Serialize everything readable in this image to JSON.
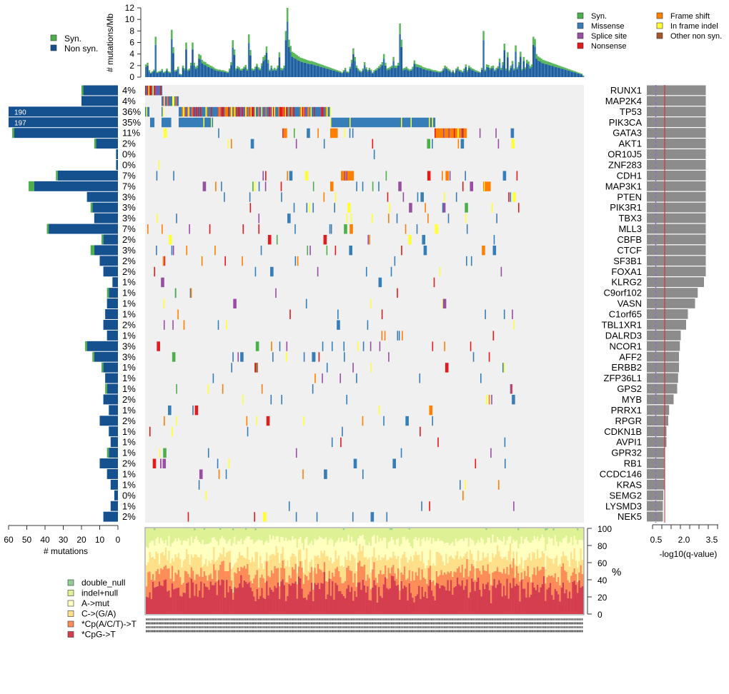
{
  "chart_data": {
    "type": "heatmap",
    "title": "",
    "top_panel": {
      "ylabel": "# mutations/Mb",
      "yticks": [
        0,
        2,
        4,
        6,
        8,
        10,
        12
      ],
      "ylim": [
        0,
        12
      ],
      "legend": [
        {
          "label": "Syn.",
          "color": "#4daf4a"
        },
        {
          "label": "Non syn.",
          "color": "#15508f"
        }
      ],
      "peaks_note": "Per-sample stacked bars, samples sorted by matrix order; typical ~1-2/Mb with spikes up to ~12/Mb",
      "sample_profile": [
        2.2,
        2.5,
        1.2,
        0.8,
        1.0,
        1.3,
        7.0,
        0.9,
        1.0,
        1.1,
        1.4,
        0.9,
        1.0,
        1.5,
        1.0,
        0.9,
        8.2,
        5.2,
        1.2,
        1.3,
        1.8,
        0.6,
        0.5,
        2.0,
        1.5,
        6.0,
        1.3,
        1.5,
        2.5,
        6.0,
        2.5,
        1.8,
        2.0,
        4.0,
        3.8,
        3.0,
        2.7,
        2.6,
        2.3,
        2.2,
        2.0,
        1.9,
        1.7,
        1.5,
        1.4,
        1.3,
        1.3,
        1.2,
        1.2,
        1.1,
        1.0,
        0.9,
        1.5,
        2.6,
        6.4,
        4.8,
        1.5,
        1.9,
        1.7,
        1.4,
        1.5,
        1.8,
        2.1,
        1.4,
        7.4,
        4.7,
        1.5,
        1.4,
        1.8,
        2.3,
        1.7,
        1.5,
        2.4,
        3.5,
        3.8,
        5.3,
        3.0,
        1.3,
        2.0,
        1.4,
        1.6,
        1.4,
        2.0,
        4.3,
        1.6,
        1.5,
        2.0,
        8.0,
        12.0,
        6.5,
        5.4,
        4.4,
        4.2,
        4.0,
        3.8,
        3.6,
        3.4,
        3.3,
        3.2,
        3.1,
        3.0,
        2.9,
        2.8,
        2.8,
        2.7,
        2.6,
        2.5,
        2.4,
        2.3,
        2.2,
        2.1,
        2.0,
        1.9,
        1.8,
        1.7,
        1.6,
        1.5,
        1.4,
        1.3,
        1.2,
        1.1,
        1.0,
        0.8,
        1.2,
        1.6,
        1.0,
        0.9,
        1.8,
        3.0,
        5.0,
        3.5,
        2.0,
        1.5,
        1.2,
        1.0,
        1.5,
        2.6,
        1.7,
        1.2,
        1.6,
        1.3,
        0.8,
        1.2,
        1.4,
        1.6,
        1.9,
        2.2,
        2.6,
        4.0,
        2.5,
        1.5,
        1.6,
        1.8,
        2.0,
        3.5,
        2.0,
        2.0,
        2.5,
        9.3,
        6.5,
        1.5,
        1.6,
        1.8,
        1.5,
        1.3,
        1.4,
        1.8,
        2.9,
        2.3,
        2.2,
        2.1,
        2.0,
        1.8,
        1.7,
        1.6,
        1.5,
        1.5,
        1.4,
        1.3,
        1.2,
        1.2,
        1.1,
        1.0,
        1.0,
        1.1,
        1.5,
        2.0,
        1.8,
        1.5,
        1.3,
        0.9,
        1.2,
        0.8,
        1.5,
        1.8,
        1.3,
        1.2,
        1.0,
        1.5,
        2.2,
        1.2,
        2.0,
        1.7,
        1.5,
        1.4,
        1.2,
        1.1,
        1.0,
        0.9,
        1.6,
        8.0,
        1.3,
        2.2,
        2.1,
        1.6,
        1.9,
        2.0,
        1.3,
        1.6,
        1.9,
        3.2,
        1.6,
        2.6,
        5.8,
        1.5,
        4.3,
        1.2,
        2.0,
        2.8,
        1.5,
        5.5,
        1.7,
        2.6,
        4.4,
        1.4,
        3.5,
        1.7,
        3.0,
        2.7,
        1.9,
        2.2,
        7.0,
        6.6,
        4.0,
        3.6,
        3.4,
        3.2,
        3.0,
        2.9,
        2.8,
        2.7,
        2.6,
        2.5,
        2.4,
        2.3,
        2.2,
        2.1,
        2.0,
        1.9,
        1.8,
        1.7,
        1.6,
        1.5,
        1.4,
        1.3,
        1.2,
        1.1,
        1.0,
        0.9,
        0.8,
        0.7,
        0.6,
        0.3
      ]
    },
    "oncoprint": {
      "legend": [
        {
          "label": "Syn.",
          "color": "#4daf4a"
        },
        {
          "label": "Missense",
          "color": "#377eb8"
        },
        {
          "label": "Splice site",
          "color": "#984ea3"
        },
        {
          "label": "Nonsense",
          "color": "#e41a1c"
        },
        {
          "label": "Frame shift",
          "color": "#ff7f00"
        },
        {
          "label": "In frame indel",
          "color": "#ffff33"
        },
        {
          "label": "Other non syn.",
          "color": "#a65628"
        }
      ],
      "background_color": "#f0f0f0",
      "genes": [
        {
          "name": "RUNX1",
          "pct": "4%",
          "nonsyn": 19,
          "syn": 1,
          "qval": 3.3
        },
        {
          "name": "MAP2K4",
          "pct": "4%",
          "nonsyn": 20,
          "syn": 0,
          "qval": 3.3
        },
        {
          "name": "TP53",
          "pct": "36%",
          "nonsyn": 190,
          "syn": 0,
          "qval": 3.3,
          "count_label": "190"
        },
        {
          "name": "PIK3CA",
          "pct": "35%",
          "nonsyn": 197,
          "syn": 0,
          "qval": 3.3,
          "count_label": "197"
        },
        {
          "name": "GATA3",
          "pct": "11%",
          "nonsyn": 57,
          "syn": 1,
          "qval": 3.3
        },
        {
          "name": "AKT1",
          "pct": "2%",
          "nonsyn": 12,
          "syn": 1,
          "qval": 3.3
        },
        {
          "name": "OR10J5",
          "pct": "0%",
          "nonsyn": 1,
          "syn": 0,
          "qval": 3.3
        },
        {
          "name": "ZNF283",
          "pct": "0%",
          "nonsyn": 1,
          "syn": 0,
          "qval": 3.3
        },
        {
          "name": "CDH1",
          "pct": "7%",
          "nonsyn": 33,
          "syn": 1,
          "qval": 3.3
        },
        {
          "name": "MAP3K1",
          "pct": "7%",
          "nonsyn": 46,
          "syn": 3,
          "qval": 3.3
        },
        {
          "name": "PTEN",
          "pct": "3%",
          "nonsyn": 17,
          "syn": 0,
          "qval": 3.3
        },
        {
          "name": "PIK3R1",
          "pct": "3%",
          "nonsyn": 14,
          "syn": 1,
          "qval": 3.3
        },
        {
          "name": "TBX3",
          "pct": "3%",
          "nonsyn": 13,
          "syn": 0,
          "qval": 3.3
        },
        {
          "name": "MLL3",
          "pct": "7%",
          "nonsyn": 38,
          "syn": 1,
          "qval": 3.3
        },
        {
          "name": "CBFB",
          "pct": "2%",
          "nonsyn": 8,
          "syn": 1,
          "qval": 3.3
        },
        {
          "name": "CTCF",
          "pct": "3%",
          "nonsyn": 13,
          "syn": 2,
          "qval": 3.3
        },
        {
          "name": "SF3B1",
          "pct": "2%",
          "nonsyn": 10,
          "syn": 0,
          "qval": 3.3
        },
        {
          "name": "FOXA1",
          "pct": "2%",
          "nonsyn": 8,
          "syn": 0,
          "qval": 3.3
        },
        {
          "name": "KLRG2",
          "pct": "1%",
          "nonsyn": 3,
          "syn": 0,
          "qval": 3.2
        },
        {
          "name": "C9orf102",
          "pct": "1%",
          "nonsyn": 5,
          "syn": 1,
          "qval": 2.85
        },
        {
          "name": "VASN",
          "pct": "1%",
          "nonsyn": 6,
          "syn": 0,
          "qval": 2.7
        },
        {
          "name": "C1orf65",
          "pct": "1%",
          "nonsyn": 7,
          "syn": 0,
          "qval": 2.3
        },
        {
          "name": "TBL1XR1",
          "pct": "2%",
          "nonsyn": 8,
          "syn": 0,
          "qval": 2.2
        },
        {
          "name": "DALRD3",
          "pct": "1%",
          "nonsyn": 6,
          "syn": 0,
          "qval": 1.9
        },
        {
          "name": "NCOR1",
          "pct": "3%",
          "nonsyn": 17,
          "syn": 1,
          "qval": 1.85
        },
        {
          "name": "AFF2",
          "pct": "3%",
          "nonsyn": 13,
          "syn": 1,
          "qval": 1.8
        },
        {
          "name": "ERBB2",
          "pct": "1%",
          "nonsyn": 8,
          "syn": 1,
          "qval": 1.8
        },
        {
          "name": "ZFP36L1",
          "pct": "1%",
          "nonsyn": 7,
          "syn": 0,
          "qval": 1.75
        },
        {
          "name": "GPS2",
          "pct": "1%",
          "nonsyn": 6,
          "syn": 1,
          "qval": 1.7
        },
        {
          "name": "MYB",
          "pct": "2%",
          "nonsyn": 8,
          "syn": 0,
          "qval": 1.5
        },
        {
          "name": "PRRX1",
          "pct": "1%",
          "nonsyn": 5,
          "syn": 0,
          "qval": 1.25
        },
        {
          "name": "RPGR",
          "pct": "2%",
          "nonsyn": 10,
          "syn": 0,
          "qval": 1.2
        },
        {
          "name": "CDKN1B",
          "pct": "1%",
          "nonsyn": 5,
          "syn": 0,
          "qval": 1.1
        },
        {
          "name": "AVPI1",
          "pct": "1%",
          "nonsyn": 4,
          "syn": 0,
          "qval": 1.1
        },
        {
          "name": "GPR32",
          "pct": "1%",
          "nonsyn": 5,
          "syn": 1,
          "qval": 1.0
        },
        {
          "name": "RB1",
          "pct": "2%",
          "nonsyn": 10,
          "syn": 0,
          "qval": 1.0
        },
        {
          "name": "CCDC146",
          "pct": "1%",
          "nonsyn": 6,
          "syn": 0,
          "qval": 1.0
        },
        {
          "name": "KRAS",
          "pct": "1%",
          "nonsyn": 4,
          "syn": 0,
          "qval": 0.98
        },
        {
          "name": "SEMG2",
          "pct": "0%",
          "nonsyn": 2,
          "syn": 0,
          "qval": 0.92
        },
        {
          "name": "LYSMD3",
          "pct": "1%",
          "nonsyn": 4,
          "syn": 0,
          "qval": 0.9
        },
        {
          "name": "NEK5",
          "pct": "2%",
          "nonsyn": 8,
          "syn": 0,
          "qval": 0.9
        }
      ]
    },
    "left_panel": {
      "xlabel": "# mutations",
      "xticks": [
        60,
        50,
        40,
        30,
        20,
        10,
        0
      ],
      "xlim": [
        60,
        0
      ]
    },
    "right_panel": {
      "xlabel": "-log10(q-value)",
      "xtick_labels": [
        "0.5",
        "2.0",
        "3.5"
      ],
      "xlim": [
        0,
        4
      ],
      "dashed_line_value": 0.5,
      "red_line_value": 1.0,
      "dashed_color": "#9966cc",
      "red_color": "#dd2222",
      "bar_color": "#8c8c8c"
    },
    "bottom_panel": {
      "ylabel": "%",
      "yticks": [
        0,
        20,
        40,
        60,
        80,
        100
      ],
      "ylim": [
        0,
        100
      ],
      "legend": [
        {
          "label": "double_null",
          "color": "#92cf92"
        },
        {
          "label": "indel+null",
          "color": "#def295"
        },
        {
          "label": "A->mut",
          "color": "#ffffbf"
        },
        {
          "label": "C->(G/A)",
          "color": "#fee08b"
        },
        {
          "label": "*Cp(A/C/T)->T",
          "color": "#fc8d59"
        },
        {
          "label": "*CpG->T",
          "color": "#d53e4f"
        }
      ],
      "approx_mean_fractions": {
        "*CpG->T": 0.3,
        "*Cp(A/C/T)->T": 0.17,
        "C->(G/A)": 0.18,
        "A->mut": 0.2,
        "indel+null": 0.15,
        "double_null": 0.003
      }
    }
  }
}
